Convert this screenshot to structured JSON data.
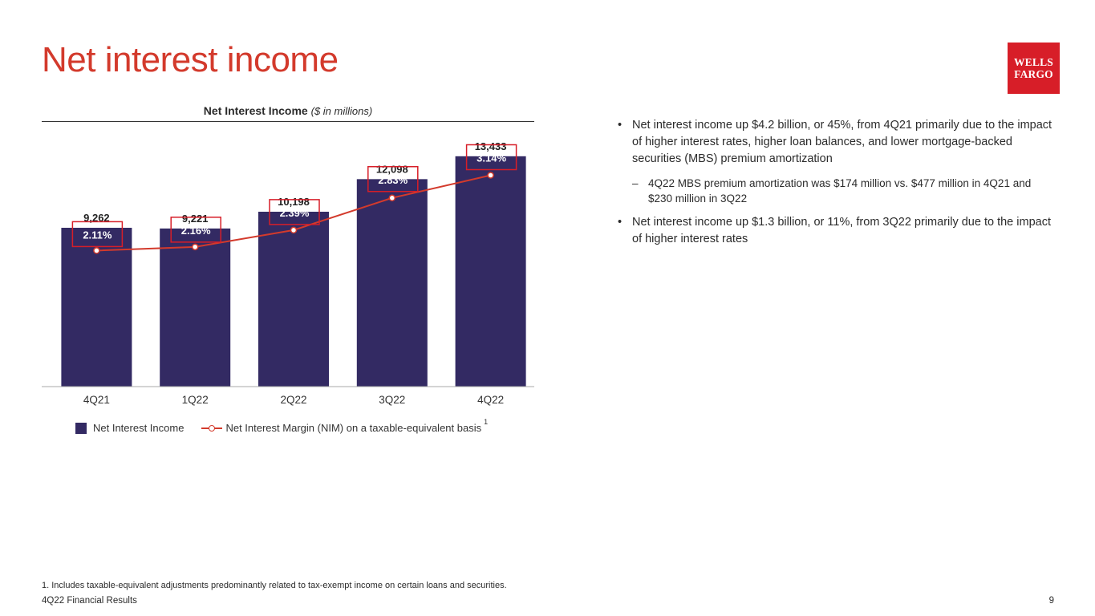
{
  "page": {
    "title": "Net interest income",
    "logo": {
      "line1": "WELLS",
      "line2": "FARGO"
    },
    "footnote": "1. Includes taxable-equivalent adjustments predominantly related to tax-exempt income on certain loans and securities.",
    "footer_left": "4Q22 Financial Results",
    "page_number": "9"
  },
  "chart_header": {
    "title": "Net Interest Income",
    "unit": "($ in millions)"
  },
  "legend": {
    "bar_label": "Net Interest Income",
    "line_label": "Net Interest Margin (NIM) on a taxable-equivalent basis",
    "line_footnote": "1"
  },
  "bullets": {
    "items": [
      {
        "text": "Net interest income up $4.2 billion, or 45%, from 4Q21 primarily due to the impact of higher interest rates, higher loan balances, and lower mortgage-backed securities (MBS) premium amortization"
      },
      {
        "text": "Net interest income up $1.3 billion, or 11%, from 3Q22 primarily due to the impact of higher interest rates"
      }
    ],
    "sub": "4Q22 MBS premium amortization was $174 million vs. $477 million in 4Q21 and $230 million in 3Q22",
    "bullet_char": "•",
    "dash_char": "–"
  },
  "chart_data": {
    "type": "bar",
    "title": "Net Interest Income ($ in millions)",
    "categories": [
      "4Q21",
      "1Q22",
      "2Q22",
      "3Q22",
      "4Q22"
    ],
    "series": [
      {
        "name": "Net Interest Income",
        "type": "bar",
        "values": [
          9262,
          9221,
          10198,
          12098,
          13433
        ],
        "labels": [
          "9,262",
          "9,221",
          "10,198",
          "12,098",
          "13,433"
        ],
        "color": "#332a63"
      },
      {
        "name": "Net Interest Margin (NIM) on a taxable-equivalent basis",
        "type": "line",
        "values": [
          2.11,
          2.16,
          2.39,
          2.83,
          3.14
        ],
        "labels": [
          "2.11%",
          "2.16%",
          "2.39%",
          "2.83%",
          "3.14%"
        ],
        "color": "#d33a2c"
      }
    ],
    "bar_ylim": [
      0,
      14500
    ],
    "line_ylim": [
      0.25,
      3.65
    ],
    "legend_position": "bottom"
  }
}
